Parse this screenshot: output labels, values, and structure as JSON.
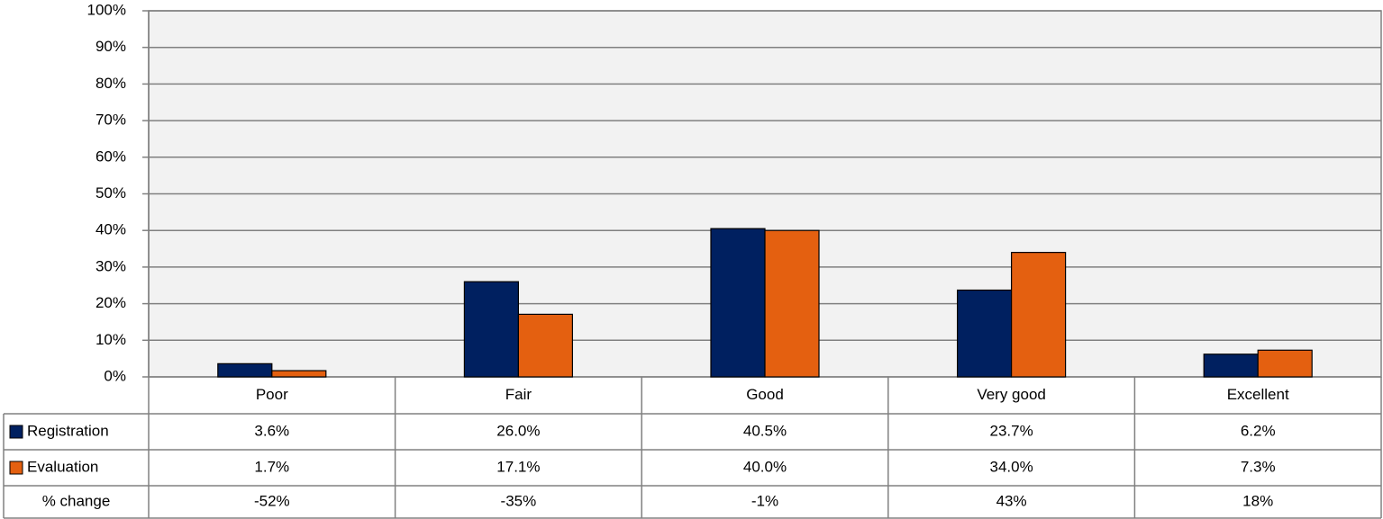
{
  "chart_data": {
    "type": "bar",
    "categories": [
      "Poor",
      "Fair",
      "Good",
      "Very good",
      "Excellent"
    ],
    "series": [
      {
        "name": "Registration",
        "color": "#002060",
        "values": [
          3.6,
          26.0,
          40.5,
          23.7,
          6.2
        ],
        "value_labels": [
          "3.6%",
          "26.0%",
          "40.5%",
          "23.7%",
          "6.2%"
        ]
      },
      {
        "name": "Evaluation",
        "color": "#e46010",
        "values": [
          1.7,
          17.1,
          40.0,
          34.0,
          7.3
        ],
        "value_labels": [
          "1.7%",
          "17.1%",
          "40.0%",
          "34.0%",
          "7.3%"
        ]
      }
    ],
    "change": {
      "name": "% change",
      "values": [
        -52,
        -35,
        -1,
        43,
        18
      ],
      "value_labels": [
        "-52%",
        "-35%",
        "-1%",
        "43%",
        "18%"
      ]
    },
    "ylim": [
      0,
      100
    ],
    "yticks": [
      {
        "value": 0,
        "label": "0%"
      },
      {
        "value": 10,
        "label": "10%"
      },
      {
        "value": 20,
        "label": "20%"
      },
      {
        "value": 30,
        "label": "30%"
      },
      {
        "value": 40,
        "label": "40%"
      },
      {
        "value": 50,
        "label": "50%"
      },
      {
        "value": 60,
        "label": "60%"
      },
      {
        "value": 70,
        "label": "70%"
      },
      {
        "value": 80,
        "label": "80%"
      },
      {
        "value": 90,
        "label": "90%"
      },
      {
        "value": 100,
        "label": "100%"
      }
    ],
    "grid": true
  }
}
